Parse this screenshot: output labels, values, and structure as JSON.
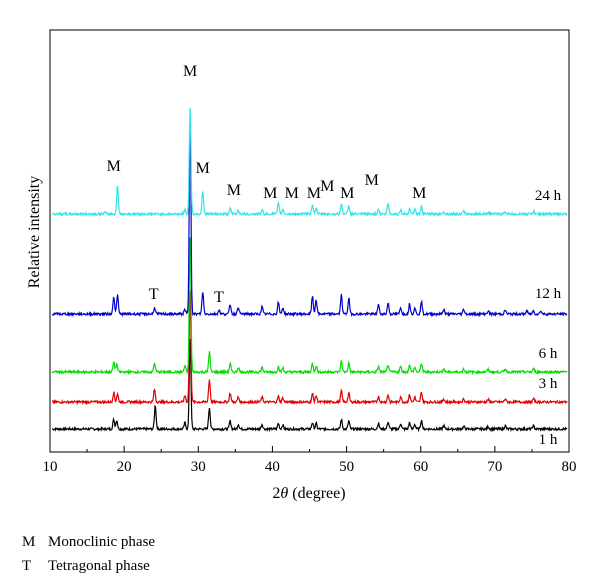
{
  "chart_data": {
    "type": "line",
    "xlabel_prefix": "2",
    "xlabel_symbol": "θ",
    "xlabel_suffix": " (degree)",
    "ylabel": "Relative intensity",
    "xlim": [
      10,
      80
    ],
    "xticks": [
      10,
      20,
      30,
      40,
      50,
      60,
      70,
      80
    ],
    "grid": false,
    "legend": "labels at right end of each trace",
    "colors": {
      "1 h": "#000000",
      "3 h": "#e00000",
      "6 h": "#00dd00",
      "12 h": "#0000cc",
      "24 h": "#33e6e6"
    },
    "series": [
      {
        "name": "1 h",
        "baseline": 0.0,
        "peaks": [
          [
            18.6,
            0.12
          ],
          [
            19.0,
            0.11
          ],
          [
            24.2,
            0.3
          ],
          [
            28.2,
            0.08
          ],
          [
            28.9,
            1.15
          ],
          [
            31.5,
            0.27
          ],
          [
            34.3,
            0.1
          ],
          [
            35.4,
            0.06
          ],
          [
            38.6,
            0.06
          ],
          [
            40.8,
            0.07
          ],
          [
            41.4,
            0.05
          ],
          [
            45.4,
            0.08
          ],
          [
            45.9,
            0.07
          ],
          [
            49.3,
            0.12
          ],
          [
            50.3,
            0.1
          ],
          [
            54.3,
            0.07
          ],
          [
            55.6,
            0.09
          ],
          [
            57.3,
            0.07
          ],
          [
            58.5,
            0.08
          ],
          [
            59.2,
            0.06
          ],
          [
            60.1,
            0.11
          ],
          [
            63.1,
            0.04
          ],
          [
            65.8,
            0.03
          ],
          [
            69.1,
            0.03
          ],
          [
            71.4,
            0.04
          ],
          [
            75.2,
            0.04
          ]
        ]
      },
      {
        "name": "3 h",
        "baseline": 0.0,
        "peaks": [
          [
            18.6,
            0.12
          ],
          [
            19.1,
            0.1
          ],
          [
            24.1,
            0.16
          ],
          [
            28.2,
            0.08
          ],
          [
            28.9,
            1.4
          ],
          [
            31.5,
            0.28
          ],
          [
            34.3,
            0.11
          ],
          [
            35.4,
            0.06
          ],
          [
            38.6,
            0.06
          ],
          [
            40.8,
            0.07
          ],
          [
            41.4,
            0.05
          ],
          [
            45.4,
            0.1
          ],
          [
            45.9,
            0.08
          ],
          [
            49.3,
            0.14
          ],
          [
            50.3,
            0.11
          ],
          [
            54.3,
            0.07
          ],
          [
            55.6,
            0.09
          ],
          [
            57.3,
            0.07
          ],
          [
            58.5,
            0.09
          ],
          [
            59.2,
            0.06
          ],
          [
            60.1,
            0.12
          ],
          [
            63.1,
            0.04
          ],
          [
            65.8,
            0.04
          ],
          [
            69.1,
            0.03
          ],
          [
            71.4,
            0.04
          ],
          [
            75.2,
            0.04
          ]
        ]
      },
      {
        "name": "6 h",
        "baseline": 0.0,
        "peaks": [
          [
            18.6,
            0.12
          ],
          [
            19.0,
            0.1
          ],
          [
            24.1,
            0.11
          ],
          [
            28.2,
            0.08
          ],
          [
            28.9,
            1.7
          ],
          [
            31.5,
            0.25
          ],
          [
            34.3,
            0.1
          ],
          [
            35.4,
            0.06
          ],
          [
            38.6,
            0.06
          ],
          [
            40.8,
            0.07
          ],
          [
            41.4,
            0.05
          ],
          [
            45.4,
            0.1
          ],
          [
            45.9,
            0.08
          ],
          [
            49.3,
            0.14
          ],
          [
            50.3,
            0.11
          ],
          [
            54.3,
            0.07
          ],
          [
            55.6,
            0.09
          ],
          [
            57.3,
            0.07
          ],
          [
            58.5,
            0.09
          ],
          [
            59.2,
            0.06
          ],
          [
            60.1,
            0.11
          ],
          [
            63.1,
            0.04
          ],
          [
            65.8,
            0.04
          ],
          [
            69.1,
            0.03
          ],
          [
            71.4,
            0.04
          ],
          [
            75.2,
            0.04
          ]
        ]
      },
      {
        "name": "12 h",
        "baseline": 0.0,
        "peaks": [
          [
            18.6,
            0.22
          ],
          [
            19.1,
            0.24
          ],
          [
            24.1,
            0.08
          ],
          [
            28.2,
            0.06
          ],
          [
            28.9,
            2.55
          ],
          [
            30.6,
            0.27
          ],
          [
            32.8,
            0.05
          ],
          [
            34.3,
            0.12
          ],
          [
            35.4,
            0.09
          ],
          [
            38.6,
            0.09
          ],
          [
            40.8,
            0.15
          ],
          [
            41.4,
            0.08
          ],
          [
            45.4,
            0.22
          ],
          [
            45.9,
            0.18
          ],
          [
            49.3,
            0.24
          ],
          [
            50.3,
            0.2
          ],
          [
            54.3,
            0.12
          ],
          [
            55.6,
            0.14
          ],
          [
            57.3,
            0.08
          ],
          [
            58.5,
            0.13
          ],
          [
            59.2,
            0.08
          ],
          [
            60.1,
            0.15
          ],
          [
            63.1,
            0.06
          ],
          [
            65.8,
            0.06
          ],
          [
            69.1,
            0.04
          ],
          [
            71.4,
            0.05
          ],
          [
            74.3,
            0.04
          ],
          [
            75.2,
            0.04
          ],
          [
            76.2,
            0.04
          ]
        ]
      },
      {
        "name": "24 h",
        "baseline": 0.0,
        "peaks": [
          [
            17.4,
            0.02
          ],
          [
            19.1,
            0.36
          ],
          [
            28.2,
            0.05
          ],
          [
            28.9,
            1.35
          ],
          [
            30.6,
            0.29
          ],
          [
            34.3,
            0.07
          ],
          [
            35.4,
            0.05
          ],
          [
            38.6,
            0.05
          ],
          [
            40.8,
            0.13
          ],
          [
            41.4,
            0.06
          ],
          [
            45.4,
            0.12
          ],
          [
            45.9,
            0.08
          ],
          [
            49.3,
            0.13
          ],
          [
            50.3,
            0.1
          ],
          [
            54.3,
            0.06
          ],
          [
            55.6,
            0.13
          ],
          [
            57.3,
            0.05
          ],
          [
            58.5,
            0.07
          ],
          [
            59.2,
            0.06
          ],
          [
            60.1,
            0.09
          ],
          [
            63.1,
            0.03
          ],
          [
            65.8,
            0.03
          ],
          [
            69.1,
            0.02
          ],
          [
            71.4,
            0.03
          ],
          [
            75.2,
            0.03
          ]
        ]
      }
    ],
    "annotations": [
      {
        "label": "M",
        "series": "24 h",
        "x": 18.6
      },
      {
        "label": "M",
        "series": "24 h",
        "x": 28.9
      },
      {
        "label": "M",
        "series": "24 h",
        "x": 30.6
      },
      {
        "label": "M",
        "series": "24 h",
        "x": 34.8
      },
      {
        "label": "M",
        "series": "24 h",
        "x": 39.7
      },
      {
        "label": "M",
        "series": "24 h",
        "x": 42.6
      },
      {
        "label": "M",
        "series": "24 h",
        "x": 45.6
      },
      {
        "label": "M",
        "series": "24 h",
        "x": 47.4
      },
      {
        "label": "M",
        "series": "24 h",
        "x": 50.1
      },
      {
        "label": "M",
        "series": "24 h",
        "x": 53.4
      },
      {
        "label": "M",
        "series": "24 h",
        "x": 59.8
      },
      {
        "label": "T",
        "series": "12 h",
        "x": 24.0
      },
      {
        "label": "T",
        "series": "12 h",
        "x": 32.8
      }
    ]
  },
  "notes": [
    {
      "symbol": "M",
      "text": "Monoclinic phase"
    },
    {
      "symbol": "T",
      "text": "Tetragonal phase"
    }
  ]
}
